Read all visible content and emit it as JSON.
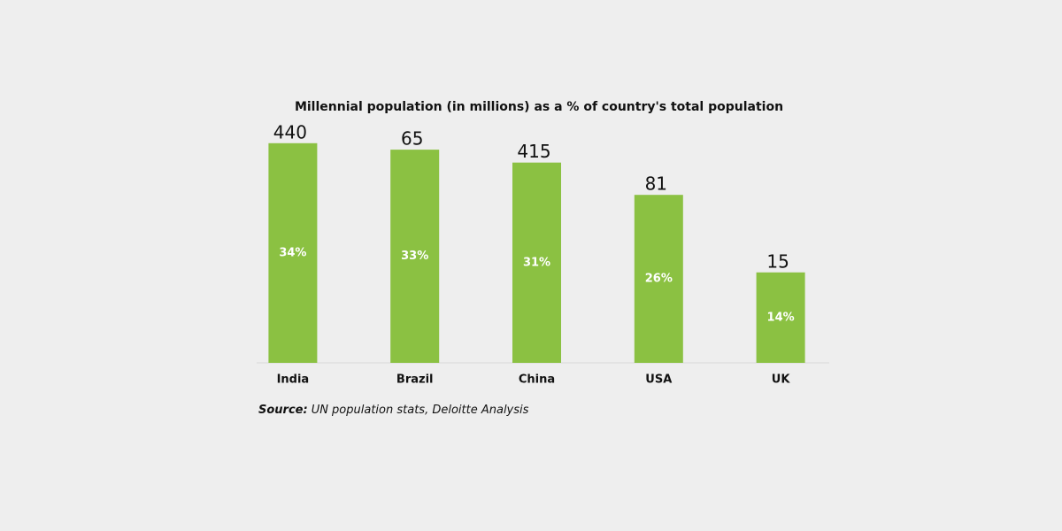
{
  "chart_data": {
    "type": "bar",
    "title": "Millennial population (in millions) as a % of country's total population",
    "categories": [
      "India",
      "Brazil",
      "China",
      "USA",
      "UK"
    ],
    "values": [
      34,
      33,
      31,
      26,
      14
    ],
    "value_labels": [
      "34%",
      "33%",
      "31%",
      "26%",
      "14%"
    ],
    "population_millions": [
      440,
      65,
      415,
      81,
      15
    ],
    "color": "#8bc142",
    "ylim": [
      0,
      40
    ],
    "source_label": "Source:",
    "source": "UN population stats, Deloitte Analysis"
  }
}
